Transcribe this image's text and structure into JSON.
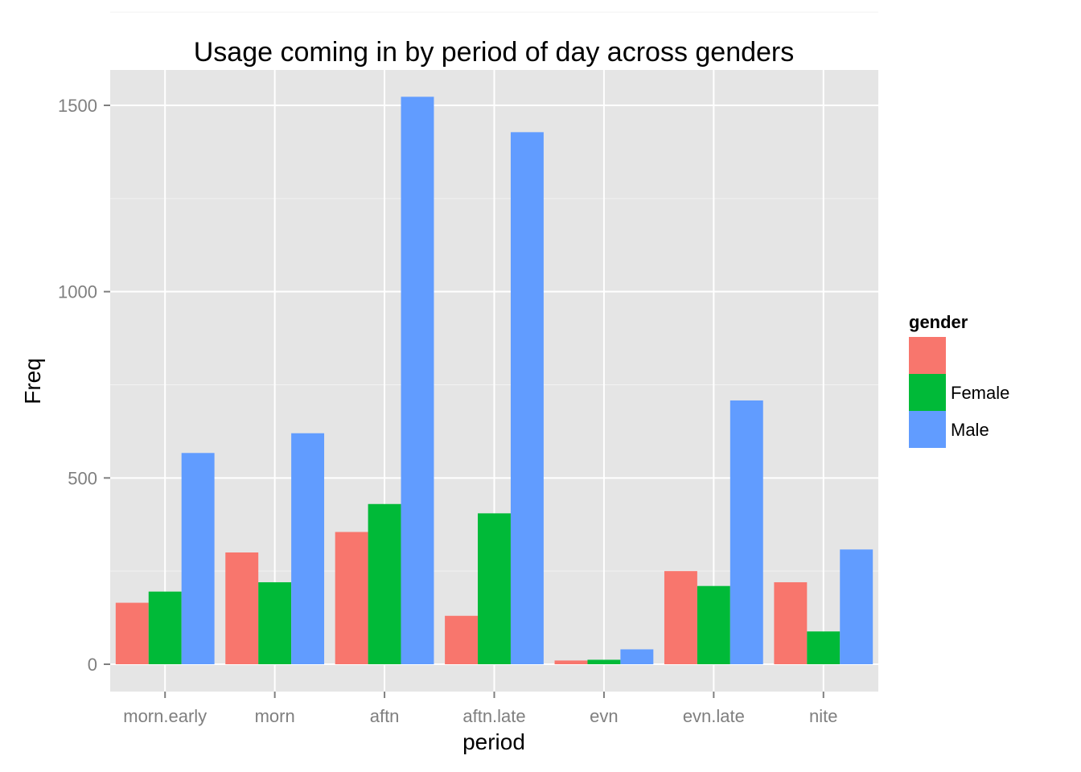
{
  "chart_data": {
    "type": "bar",
    "title": "Usage coming in by period of day across genders",
    "xlabel": "period",
    "ylabel": "Freq",
    "categories": [
      "morn.early",
      "morn",
      "aftn",
      "aftn.late",
      "evn",
      "evn.late",
      "nite"
    ],
    "yticks": [
      "0",
      "500",
      "1000",
      "1500"
    ],
    "ylim": [
      -75,
      1610
    ],
    "grid": true,
    "legend": {
      "title": "gender",
      "position": "right"
    },
    "series": [
      {
        "name": "",
        "color": "#F8766D",
        "values": [
          165,
          300,
          355,
          130,
          10,
          250,
          220
        ]
      },
      {
        "name": "Female",
        "color": "#00BA38",
        "values": [
          195,
          220,
          430,
          405,
          12,
          210,
          88
        ]
      },
      {
        "name": "Male",
        "color": "#619CFF",
        "values": [
          567,
          620,
          1523,
          1428,
          40,
          708,
          308
        ]
      }
    ]
  }
}
